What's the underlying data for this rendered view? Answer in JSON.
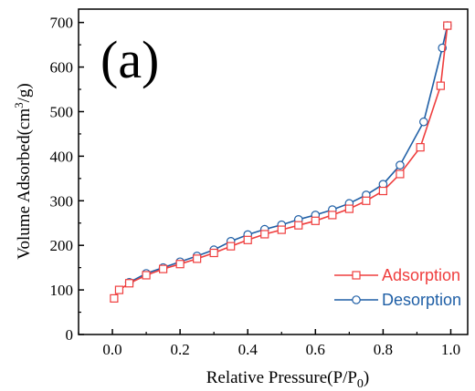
{
  "chart_data": {
    "type": "line",
    "panel_label": "(a)",
    "xlabel": {
      "text": "Relative Pressure(P/P",
      "sub": "0",
      "end": ")"
    },
    "ylabel": {
      "pre": "Volume Adsorbed(cm",
      "sup": "3",
      "post": "/g)"
    },
    "xlim": [
      -0.1,
      1.05
    ],
    "ylim": [
      0,
      730
    ],
    "xticks": [
      0.0,
      0.2,
      0.4,
      0.6,
      0.8,
      1.0
    ],
    "xtick_labels": [
      "0.0",
      "0.2",
      "0.4",
      "0.6",
      "0.8",
      "1.0"
    ],
    "yticks": [
      0,
      100,
      200,
      300,
      400,
      500,
      600,
      700
    ],
    "ytick_labels": [
      "0",
      "100",
      "200",
      "300",
      "400",
      "500",
      "600",
      "700"
    ],
    "grid": false,
    "legend_position": "bottom-right",
    "series": [
      {
        "name": "Adsorption",
        "color": "#ef3e3e",
        "marker": "square",
        "x": [
          0.005,
          0.02,
          0.05,
          0.1,
          0.15,
          0.2,
          0.25,
          0.3,
          0.35,
          0.4,
          0.45,
          0.5,
          0.55,
          0.6,
          0.65,
          0.7,
          0.75,
          0.8,
          0.85,
          0.91,
          0.97,
          0.99
        ],
        "y": [
          81,
          100,
          115,
          133,
          147,
          158,
          170,
          183,
          198,
          212,
          225,
          235,
          245,
          255,
          268,
          282,
          300,
          322,
          360,
          420,
          558,
          693
        ]
      },
      {
        "name": "Desorption",
        "color": "#1f5fa6",
        "marker": "circle",
        "x": [
          0.05,
          0.1,
          0.15,
          0.2,
          0.25,
          0.3,
          0.35,
          0.4,
          0.45,
          0.5,
          0.55,
          0.6,
          0.65,
          0.7,
          0.75,
          0.8,
          0.85,
          0.92,
          0.975,
          0.99
        ],
        "y": [
          117,
          137,
          150,
          163,
          176,
          190,
          209,
          224,
          236,
          246,
          258,
          268,
          280,
          294,
          313,
          337,
          380,
          477,
          643,
          693
        ]
      }
    ]
  }
}
